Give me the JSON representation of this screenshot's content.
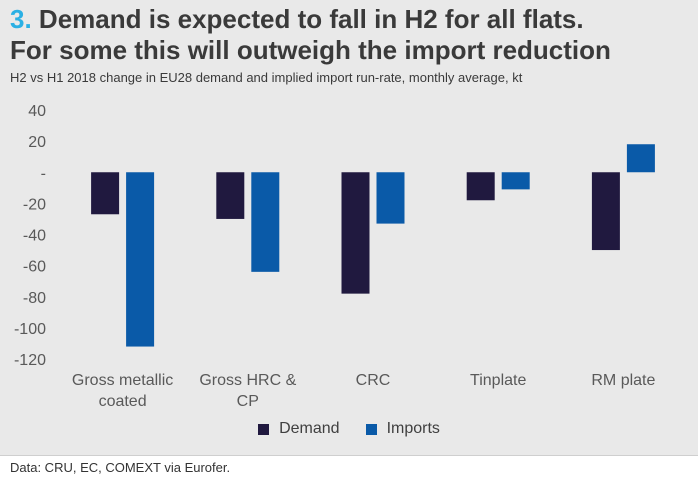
{
  "title_number": "3.",
  "title_line1": "Demand is expected to fall in H2 for all flats.",
  "title_line2": "For some this will outweigh the import reduction",
  "subtitle": "H2 vs H1 2018 change in EU28 demand and implied import run-rate, monthly average, kt",
  "source": "Data: CRU, EC, COMEXT via Eurofer.",
  "colors": {
    "demand": "#20193f",
    "imports": "#0a5aa8",
    "background": "#e9e9e9",
    "axis_text": "#595959"
  },
  "chart_data": {
    "type": "bar",
    "categories": [
      [
        "Gross metallic",
        "coated"
      ],
      [
        "Gross HRC &",
        "CP"
      ],
      [
        "CRC"
      ],
      [
        "Tinplate"
      ],
      [
        "RM plate"
      ]
    ],
    "series": [
      {
        "name": "Demand",
        "values": [
          -27,
          -30,
          -78,
          -18,
          -50
        ]
      },
      {
        "name": "Imports",
        "values": [
          -112,
          -64,
          -33,
          -11,
          18
        ]
      }
    ],
    "ylim": [
      -120,
      40
    ],
    "yticks": [
      40,
      20,
      0,
      -20,
      -40,
      -60,
      -80,
      -100,
      -120
    ],
    "ytick_labels": [
      "40",
      "20",
      "-",
      "-20",
      "-40",
      "-60",
      "-80",
      "-100",
      "-120"
    ],
    "legend_position": "bottom",
    "grid": false
  }
}
